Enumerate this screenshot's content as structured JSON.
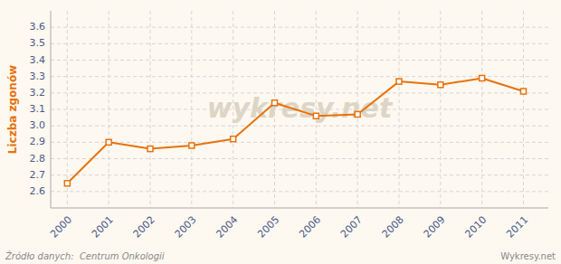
{
  "chart_data": {
    "type": "line",
    "ylabel": "Liczba zgonów",
    "x": [
      2000,
      2001,
      2002,
      2003,
      2004,
      2005,
      2006,
      2007,
      2008,
      2009,
      2010,
      2011
    ],
    "values": [
      2.65,
      2.9,
      2.86,
      2.88,
      2.92,
      3.14,
      3.06,
      3.07,
      3.27,
      3.25,
      3.29,
      3.21
    ],
    "color": "#e8720c",
    "marker": "square",
    "xlim": [
      1999.6,
      2011.6
    ],
    "xticks": [
      2000,
      2001,
      2002,
      2003,
      2004,
      2005,
      2006,
      2007,
      2008,
      2009,
      2010,
      2011
    ],
    "ylim": [
      2.5,
      3.7
    ],
    "yticks": [
      2.6,
      2.7,
      2.8,
      2.9,
      {
        "value": 3.0,
        "label": "3.0"
      },
      3.1,
      3.2,
      3.3,
      3.4,
      3.5,
      3.6
    ],
    "grid": true,
    "annotations": [
      "wykresy.net",
      "Źródło danych:  Centrum Onkologii",
      "Wykresy.net"
    ]
  }
}
